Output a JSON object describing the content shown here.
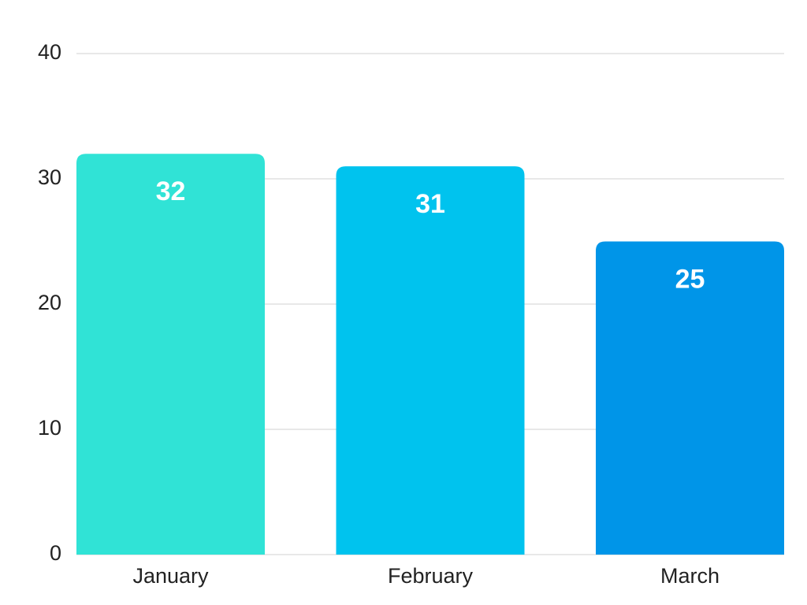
{
  "chart_data": {
    "type": "bar",
    "categories": [
      "January",
      "February",
      "March"
    ],
    "values": [
      32,
      31,
      25
    ],
    "colors": [
      "#30e3d6",
      "#00c3ee",
      "#0095e8"
    ],
    "ylim": [
      0,
      40
    ],
    "yticks": [
      0,
      10,
      20,
      30,
      40
    ],
    "grid": true
  }
}
